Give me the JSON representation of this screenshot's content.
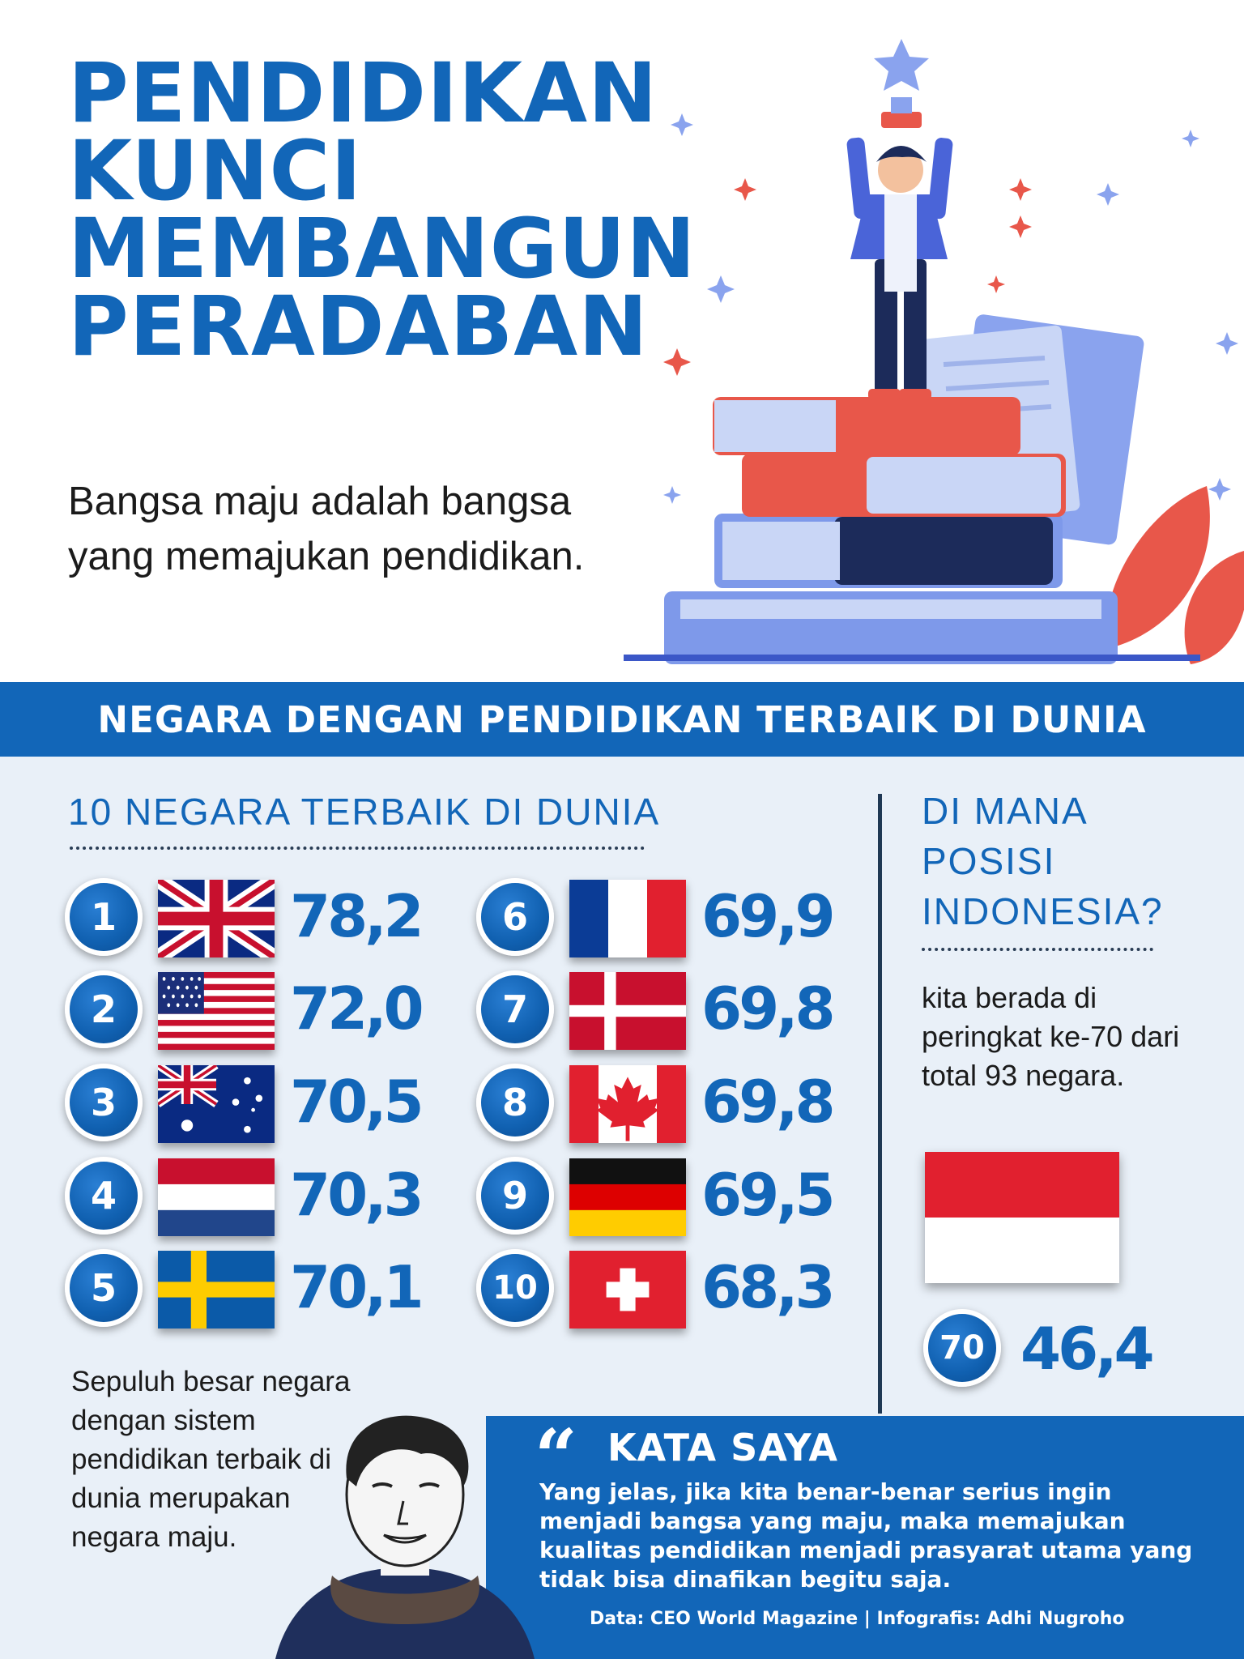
{
  "hero": {
    "title_lines": [
      "PENDIDIKAN",
      "KUNCI",
      "MEMBANGUN",
      "PERADABAN"
    ],
    "subtitle": "Bangsa maju adalah bangsa yang memajukan pendidikan."
  },
  "banner": {
    "text": "NEGARA DENGAN PENDIDIKAN TERBAIK DI DUNIA"
  },
  "ranking": {
    "heading": "10 NEGARA TERBAIK DI DUNIA",
    "rows": [
      {
        "rank": "1",
        "flag": "united-kingdom-flag",
        "score": "78,2"
      },
      {
        "rank": "2",
        "flag": "united-states-flag",
        "score": "72,0"
      },
      {
        "rank": "3",
        "flag": "australia-flag",
        "score": "70,5"
      },
      {
        "rank": "4",
        "flag": "netherlands-flag",
        "score": "70,3"
      },
      {
        "rank": "5",
        "flag": "sweden-flag",
        "score": "70,1"
      },
      {
        "rank": "6",
        "flag": "france-flag",
        "score": "69,9"
      },
      {
        "rank": "7",
        "flag": "denmark-flag",
        "score": "69,8"
      },
      {
        "rank": "8",
        "flag": "canada-flag",
        "score": "69,8"
      },
      {
        "rank": "9",
        "flag": "germany-flag",
        "score": "69,5"
      },
      {
        "rank": "10",
        "flag": "switzerland-flag",
        "score": "68,3"
      }
    ]
  },
  "summary": {
    "text": "Sepuluh besar negara dengan sistem pendidikan terbaik di dunia merupakan negara maju."
  },
  "indonesia": {
    "heading": "DI MANA POSISI INDONESIA?",
    "text": "kita berada di peringkat ke-70 dari total 93 negara.",
    "flag": "indonesia-flag",
    "rank": "70",
    "score": "46,4"
  },
  "quote": {
    "mark": "“",
    "title": "KATA SAYA",
    "body": "Yang jelas, jika kita benar-benar serius ingin menjadi bangsa yang maju, maka memajukan kualitas pendidikan menjadi prasyarat utama yang tidak bisa dinafikan begitu saja.",
    "credits": "Data: CEO World Magazine | Infografis: Adhi Nugroho"
  },
  "colors": {
    "brand_blue": "#1266b8",
    "background": "#e9f0f8",
    "accent_red": "#e8574a",
    "book_blue": "#7e99ea"
  }
}
